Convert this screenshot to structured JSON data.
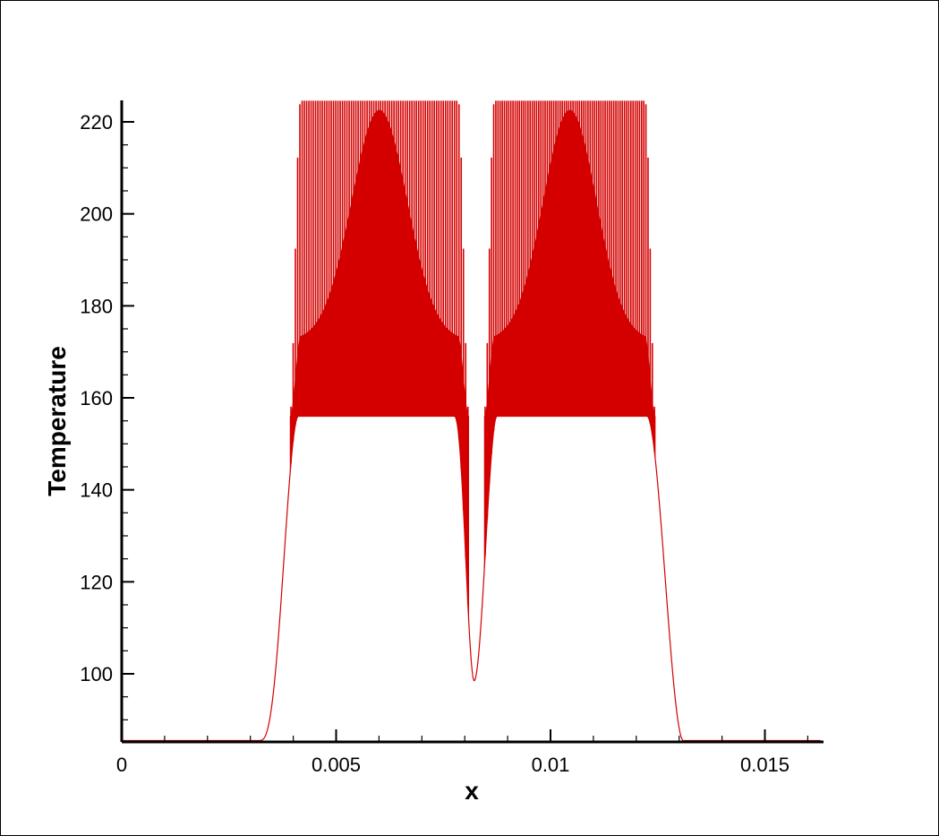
{
  "chart_data": {
    "type": "line",
    "title": "",
    "xlabel": "x",
    "ylabel": "Temperature",
    "xlim": [
      0,
      0.0163
    ],
    "ylim": [
      85,
      225
    ],
    "x_ticks": [
      {
        "value": 0,
        "label": "0"
      },
      {
        "value": 0.005,
        "label": "0.005"
      },
      {
        "value": 0.01,
        "label": "0.01"
      },
      {
        "value": 0.015,
        "label": "0.015"
      }
    ],
    "x_minor_step": 0.001,
    "y_ticks": [
      {
        "value": 100,
        "label": "100"
      },
      {
        "value": 120,
        "label": "120"
      },
      {
        "value": 140,
        "label": "140"
      },
      {
        "value": 160,
        "label": "160"
      },
      {
        "value": 180,
        "label": "180"
      },
      {
        "value": 200,
        "label": "200"
      },
      {
        "value": 220,
        "label": "220"
      }
    ],
    "y_minor_step": 5,
    "grid": false,
    "line_color": "#d40000",
    "series": [
      {
        "baseline": 85.5,
        "lobes": [
          {
            "x_start": 0.00392,
            "x_end": 0.0081,
            "plateau_low": 156,
            "plateau_high": 224.6,
            "envelope_dip_min": 172.5,
            "oscillation_count": 80
          },
          {
            "x_start": 0.00845,
            "x_end": 0.01245,
            "plateau_low": 156,
            "plateau_high": 224.6,
            "envelope_dip_min": 172.5,
            "oscillation_count": 80
          }
        ],
        "outer_edges": {
          "left_toe_x": 0.0032,
          "right_toe_x": 0.0131
        },
        "valley": {
          "x": 0.00822,
          "y": 98.5
        }
      }
    ]
  }
}
